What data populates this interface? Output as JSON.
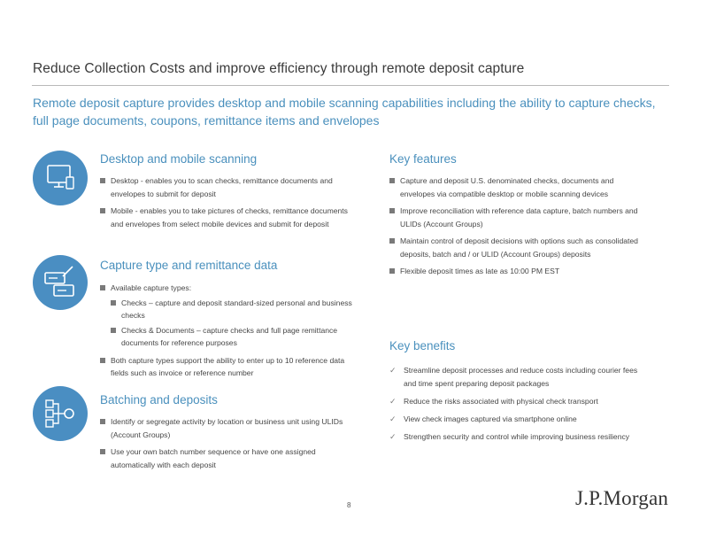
{
  "title": "Reduce Collection Costs and improve efficiency through remote deposit capture",
  "subtitle": "Remote deposit capture provides desktop and mobile scanning capabilities including the ability to capture checks, full page documents, coupons, remittance items and envelopes",
  "left": {
    "desktop": {
      "heading": "Desktop and mobile scanning",
      "icon": "computer-screen-icon",
      "bullets": [
        "Desktop - enables you to scan checks, remittance documents and envelopes to submit for deposit",
        "Mobile - enables you to take pictures of checks, remittance documents and envelopes from select mobile devices and submit for deposit"
      ]
    },
    "capture": {
      "heading": "Capture type and remittance data",
      "icon": "checks-with-pen-icon",
      "intro": "Available capture types:",
      "sub": [
        "Checks – capture and deposit standard-sized personal and business checks",
        "Checks & Documents – capture checks and full page remittance documents for reference purposes"
      ],
      "note": "Both capture types support the ability to enter up to 10 reference data fields such as invoice or reference number"
    },
    "batching": {
      "heading": "Batching and deposits",
      "icon": "batch-flow-icon",
      "bullets": [
        "Identify or segregate activity by location or business unit using ULIDs (Account Groups)",
        "Use your own batch number sequence or have one assigned automatically with each deposit"
      ]
    }
  },
  "right": {
    "features": {
      "heading": "Key features",
      "bullets": [
        "Capture and deposit U.S. denominated checks, documents and envelopes via compatible desktop or mobile scanning devices",
        "Improve reconciliation with reference data capture, batch numbers and ULIDs (Account Groups)",
        "Maintain control of deposit decisions with options such as consolidated deposits, batch and / or ULID (Account Groups) deposits",
        "Flexible deposit times as late as 10:00 PM EST"
      ]
    },
    "benefits": {
      "heading": "Key benefits",
      "check": "✓",
      "items": [
        "Streamline deposit processes and reduce costs including courier fees and time spent preparing deposit packages",
        "Reduce the risks associated with physical check transport",
        "View check images captured via smartphone online",
        "Strengthen security and control while improving business resiliency"
      ]
    }
  },
  "page_number": "8",
  "logo_text": "J.P.Morgan",
  "colors": {
    "accent": "#4a90bd",
    "icon_circle": "#4a8ec2",
    "text": "#474747"
  }
}
